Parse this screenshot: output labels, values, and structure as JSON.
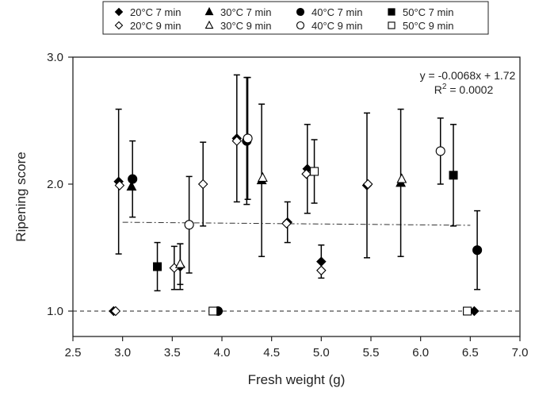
{
  "chart_data": {
    "type": "scatter",
    "title": "",
    "xlabel": "Fresh weight (g)",
    "ylabel": "Ripening score",
    "xlim": [
      2.5,
      7.0
    ],
    "ylim": [
      0.8,
      3.0
    ],
    "xticks": [
      "2.5",
      "3.0",
      "3.5",
      "4.0",
      "4.5",
      "5.0",
      "5.5",
      "6.0",
      "6.5",
      "7.0"
    ],
    "yticks": [
      "1.0",
      "2.0",
      "3.0"
    ],
    "legend_position": "top, above plot",
    "grid": false,
    "annotation": {
      "equation": "y = -0.0068x + 1.72",
      "r2_prefix": "R",
      "r2_sup": "2",
      "r2_suffix": " = 0.0002"
    },
    "trendline": {
      "slope": -0.0068,
      "intercept": 1.72,
      "x_range": [
        3.0,
        6.5
      ],
      "style": "dash-dot"
    },
    "reference_line": {
      "y": 1.0,
      "style": "dashed"
    },
    "series": [
      {
        "name": "20°C 7 min",
        "marker": "diamond",
        "fill": "filled",
        "points": [
          {
            "x": 2.91,
            "y": 1.0
          },
          {
            "x": 2.96,
            "y": 2.02,
            "err": 0.57
          },
          {
            "x": 3.58,
            "y": 1.35,
            "err": 0.18
          },
          {
            "x": 4.15,
            "y": 2.36,
            "err": 0.5
          },
          {
            "x": 4.66,
            "y": 1.7,
            "err": 0.16
          },
          {
            "x": 4.86,
            "y": 2.12,
            "err": 0.35
          },
          {
            "x": 5.0,
            "y": 1.39,
            "err": 0.13
          },
          {
            "x": 5.46,
            "y": 1.99,
            "err": 0.57
          },
          {
            "x": 6.54,
            "y": 1.0
          }
        ]
      },
      {
        "name": "20°C 9 min",
        "marker": "diamond",
        "fill": "open",
        "points": [
          {
            "x": 2.93,
            "y": 1.0
          },
          {
            "x": 2.97,
            "y": 1.99
          },
          {
            "x": 3.52,
            "y": 1.34,
            "err": 0.17
          },
          {
            "x": 3.81,
            "y": 2.0,
            "err": 0.33
          },
          {
            "x": 4.15,
            "y": 2.34
          },
          {
            "x": 4.65,
            "y": 1.69
          },
          {
            "x": 4.85,
            "y": 2.08
          },
          {
            "x": 5.0,
            "y": 1.32
          },
          {
            "x": 5.47,
            "y": 2.0
          }
        ]
      },
      {
        "name": "30°C 7 min",
        "marker": "triangle",
        "fill": "filled",
        "points": [
          {
            "x": 3.09,
            "y": 1.98
          },
          {
            "x": 4.4,
            "y": 2.03,
            "err": 0.6
          },
          {
            "x": 5.8,
            "y": 2.01,
            "err": 0.58
          }
        ]
      },
      {
        "name": "30°C 9 min",
        "marker": "triangle",
        "fill": "open",
        "points": [
          {
            "x": 3.58,
            "y": 1.37,
            "err": 0.16
          },
          {
            "x": 4.41,
            "y": 2.05
          },
          {
            "x": 5.81,
            "y": 2.04
          }
        ]
      },
      {
        "name": "40°C 7 min",
        "marker": "circle",
        "fill": "filled",
        "points": [
          {
            "x": 3.1,
            "y": 2.04,
            "err": 0.3
          },
          {
            "x": 4.25,
            "y": 2.34,
            "err": 0.5
          },
          {
            "x": 3.96,
            "y": 1.0
          },
          {
            "x": 6.57,
            "y": 1.48,
            "err": 0.31
          }
        ]
      },
      {
        "name": "40°C 9 min",
        "marker": "circle",
        "fill": "open",
        "points": [
          {
            "x": 3.67,
            "y": 1.68,
            "err": 0.38
          },
          {
            "x": 4.26,
            "y": 2.36,
            "err": 0.48
          },
          {
            "x": 6.2,
            "y": 2.26,
            "err": 0.26
          }
        ]
      },
      {
        "name": "50°C 7 min",
        "marker": "square",
        "fill": "filled",
        "points": [
          {
            "x": 3.35,
            "y": 1.35,
            "err": 0.19
          },
          {
            "x": 6.33,
            "y": 2.07,
            "err": 0.4
          }
        ]
      },
      {
        "name": "50°C 9 min",
        "marker": "square",
        "fill": "open",
        "points": [
          {
            "x": 3.91,
            "y": 1.0
          },
          {
            "x": 4.93,
            "y": 2.1,
            "err": 0.25
          },
          {
            "x": 6.47,
            "y": 1.0
          }
        ]
      }
    ]
  }
}
